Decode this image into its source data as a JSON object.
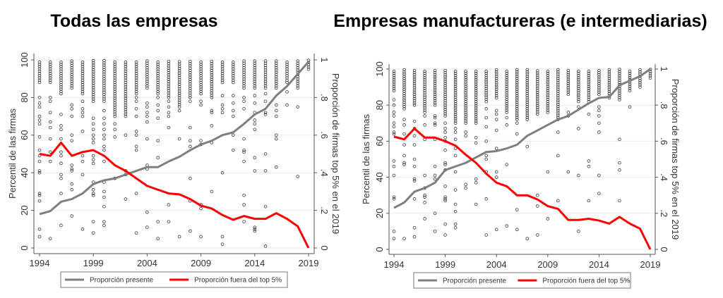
{
  "chart_data": [
    {
      "type": "line+scatter",
      "title": "Todas las empresas",
      "ylabel_left": "Percentil de las firmas",
      "ylabel_right": "Proporción de firmas top 5% en el 2019",
      "xlim": [
        1994,
        2019
      ],
      "ylim_left": [
        0,
        100
      ],
      "ylim_right": [
        0,
        1
      ],
      "x_ticks": [
        "1994",
        "1999",
        "2004",
        "2009",
        "2014",
        "2019"
      ],
      "y_ticks_left": [
        "0",
        "20",
        "40",
        "60",
        "80",
        "100"
      ],
      "y_ticks_right": [
        "0",
        ".2",
        ".4",
        ".6",
        ".8",
        "1"
      ],
      "grid": true,
      "legend_position": "bottom",
      "x": [
        1994,
        1995,
        1996,
        1997,
        1998,
        1999,
        2000,
        2001,
        2002,
        2003,
        2004,
        2005,
        2006,
        2007,
        2008,
        2009,
        2010,
        2011,
        2012,
        2013,
        2014,
        2015,
        2016,
        2017,
        2018,
        2019
      ],
      "series": [
        {
          "name": "Proporción presente",
          "color": "#7f7f7f",
          "axis": "right",
          "values": [
            0.18,
            0.196,
            0.246,
            0.26,
            0.29,
            0.34,
            0.36,
            0.37,
            0.39,
            0.41,
            0.43,
            0.43,
            0.46,
            0.485,
            0.52,
            0.55,
            0.57,
            0.6,
            0.615,
            0.66,
            0.71,
            0.74,
            0.81,
            0.86,
            0.925,
            0.99
          ]
        },
        {
          "name": "Proporción fuera del top 5%",
          "color": "#ff0000",
          "axis": "right",
          "values": [
            0.5,
            0.49,
            0.56,
            0.49,
            0.51,
            0.52,
            0.49,
            0.44,
            0.41,
            0.37,
            0.33,
            0.31,
            0.29,
            0.285,
            0.26,
            0.225,
            0.21,
            0.175,
            0.15,
            0.17,
            0.155,
            0.155,
            0.185,
            0.155,
            0.115,
            0.0
          ]
        }
      ],
      "scatter": {
        "axis": "left",
        "dense_band_lower": [
          88,
          88,
          82,
          85,
          82,
          78,
          78,
          70,
          70,
          82,
          85,
          82,
          80,
          75,
          80,
          82,
          80,
          88,
          88,
          85,
          85,
          85,
          85,
          88,
          85,
          95
        ],
        "outliers": [
          [
            80,
            77,
            75,
            70,
            68,
            66,
            59,
            52,
            49,
            46,
            41,
            40,
            29,
            28,
            25,
            10,
            6
          ],
          [
            80,
            78,
            72,
            67,
            64,
            58,
            51,
            46,
            5
          ],
          [
            71,
            65,
            63,
            58,
            51,
            49,
            45,
            39,
            37,
            29,
            12
          ],
          [
            76,
            74,
            70,
            60,
            57,
            44,
            42,
            41,
            34,
            31,
            17
          ],
          [
            78,
            74,
            72,
            70,
            62,
            49,
            46,
            39,
            10
          ],
          [
            69,
            66,
            63,
            60,
            58,
            56,
            49,
            47,
            45,
            35,
            31,
            29,
            28,
            14,
            8
          ],
          [
            73,
            69,
            66,
            63,
            60,
            58,
            54,
            52,
            46,
            35,
            30,
            27,
            22,
            14,
            12
          ],
          [
            66,
            63,
            59,
            37
          ],
          [
            60,
            41,
            39,
            26
          ],
          [
            80,
            78,
            74,
            70,
            62,
            60,
            54,
            52,
            29,
            8
          ],
          [
            77,
            75,
            72,
            70,
            67,
            58,
            44,
            42,
            19,
            11
          ],
          [
            80,
            76,
            73,
            69,
            57,
            48,
            14,
            5
          ],
          [
            78,
            75,
            72,
            70,
            64,
            23,
            14
          ],
          [
            73,
            58,
            6
          ],
          [
            78,
            64,
            57,
            54,
            37,
            25,
            9
          ],
          [
            78,
            76,
            57,
            55,
            23,
            21,
            6
          ],
          [
            73,
            72,
            65,
            56,
            30
          ],
          [
            81,
            76,
            74,
            72,
            40,
            6,
            2
          ],
          [
            81,
            77,
            73,
            70,
            60,
            52
          ],
          [
            80,
            78,
            74,
            58,
            52,
            51,
            46,
            28,
            23,
            14
          ],
          [
            81,
            77,
            72,
            68,
            66,
            63,
            48,
            41,
            11,
            10,
            9
          ],
          [
            82,
            78,
            72,
            71,
            50,
            41,
            22,
            1
          ],
          [
            76,
            73,
            70,
            60,
            58,
            43
          ],
          [
            83,
            76
          ],
          [
            75,
            38
          ],
          []
        ]
      }
    },
    {
      "type": "line+scatter",
      "title": "Empresas manufactureras (e intermediarias)",
      "ylabel_left": "Percentil de las firmas",
      "ylabel_right": "Proporción de firmas top 5% en el 2019",
      "xlim": [
        1994,
        2019
      ],
      "ylim_left": [
        0,
        100
      ],
      "ylim_right": [
        0,
        1
      ],
      "x_ticks": [
        "1994",
        "1999",
        "2004",
        "2009",
        "2014",
        "2019"
      ],
      "y_ticks_left": [
        "0",
        "20",
        "40",
        "60",
        "80",
        "100"
      ],
      "y_ticks_right": [
        "0",
        ".2",
        ".4",
        ".6",
        ".8",
        "1"
      ],
      "grid": true,
      "legend_position": "bottom",
      "x": [
        1994,
        1995,
        1996,
        1997,
        1998,
        1999,
        2000,
        2001,
        2002,
        2003,
        2004,
        2005,
        2006,
        2007,
        2008,
        2009,
        2010,
        2011,
        2012,
        2013,
        2014,
        2015,
        2016,
        2017,
        2018,
        2019
      ],
      "series": [
        {
          "name": "Proporción presente",
          "color": "#7f7f7f",
          "axis": "right",
          "values": [
            0.23,
            0.26,
            0.32,
            0.34,
            0.37,
            0.44,
            0.46,
            0.48,
            0.51,
            0.54,
            0.545,
            0.56,
            0.58,
            0.63,
            0.66,
            0.69,
            0.72,
            0.74,
            0.775,
            0.81,
            0.84,
            0.845,
            0.91,
            0.935,
            0.96,
            1.0
          ]
        },
        {
          "name": "Proporción fuera del top 5%",
          "color": "#ff0000",
          "axis": "right",
          "values": [
            0.625,
            0.61,
            0.67,
            0.62,
            0.62,
            0.6,
            0.575,
            0.525,
            0.48,
            0.42,
            0.37,
            0.35,
            0.3,
            0.3,
            0.277,
            0.24,
            0.225,
            0.163,
            0.163,
            0.17,
            0.16,
            0.143,
            0.18,
            0.143,
            0.115,
            0.0
          ]
        }
      ],
      "scatter": {
        "axis": "left",
        "dense_band_lower": [
          88,
          78,
          80,
          76,
          80,
          74,
          70,
          70,
          70,
          82,
          84,
          76,
          72,
          72,
          75,
          76,
          72,
          86,
          82,
          82,
          86,
          84,
          83,
          88,
          90,
          95
        ],
        "outliers": [
          [
            83,
            80,
            76,
            74,
            70,
            68,
            65,
            64,
            49,
            46,
            41,
            29,
            28,
            10,
            6
          ],
          [
            72,
            69,
            64,
            58,
            52,
            48,
            47,
            6
          ],
          [
            71,
            67,
            63,
            58,
            50,
            46,
            39,
            38,
            28,
            12,
            7
          ],
          [
            74,
            69,
            61,
            41,
            34,
            30,
            29,
            26,
            17
          ],
          [
            74,
            73,
            70,
            69,
            61,
            46,
            41,
            39,
            20,
            10
          ],
          [
            70,
            67,
            65,
            62,
            60,
            55,
            48,
            47,
            44,
            35,
            29,
            28,
            27,
            14,
            8
          ],
          [
            67,
            65,
            61,
            56,
            52,
            43,
            33,
            25,
            21,
            14,
            12
          ],
          [
            65,
            63,
            36,
            34
          ],
          [
            62,
            59,
            39,
            37,
            25
          ],
          [
            78,
            73,
            68,
            60,
            52,
            50,
            43,
            28,
            8
          ],
          [
            77,
            75,
            72,
            66,
            56,
            43,
            40,
            11
          ],
          [
            73,
            69,
            47,
            13
          ],
          [
            70,
            64,
            22,
            11
          ],
          [
            57,
            6
          ],
          [
            30,
            24,
            8
          ],
          [
            43,
            17
          ],
          [
            65,
            52,
            27
          ],
          [
            76,
            74,
            43
          ],
          [
            79,
            67,
            41,
            10
          ],
          [
            75,
            49,
            46,
            27
          ],
          [
            79,
            77,
            74,
            70,
            65,
            41,
            31
          ],
          [],
          [
            61,
            48,
            44,
            27
          ],
          [
            79
          ],
          [],
          []
        ]
      }
    }
  ]
}
